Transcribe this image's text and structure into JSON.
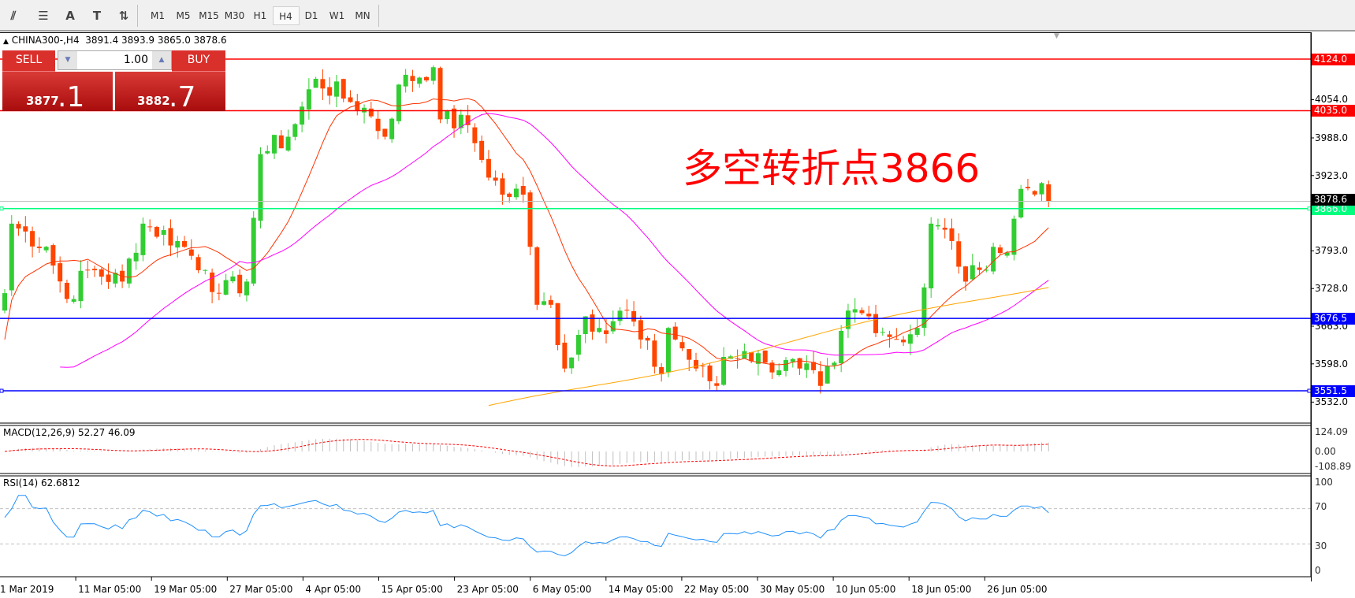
{
  "toolbar": {
    "tools": [
      {
        "name": "fibonacci-expansion-icon",
        "glyph": "⫽"
      },
      {
        "name": "fibonacci-fan-icon",
        "glyph": "☰"
      },
      {
        "name": "text-icon",
        "glyph": "A"
      },
      {
        "name": "text-label-icon",
        "glyph": "T"
      },
      {
        "name": "arrows-icon",
        "glyph": "⇅"
      }
    ],
    "timeframes": [
      "M1",
      "M5",
      "M15",
      "M30",
      "H1",
      "H4",
      "D1",
      "W1",
      "MN"
    ],
    "active_timeframe": "H4"
  },
  "chart": {
    "symbol_line": "CHINA300-,H4",
    "ohlc": "3891.4 3893.9 3865.0 3878.6",
    "annotation": "多空转折点3866",
    "annotation_color": "#ff0000",
    "bull_color": "#32cd32",
    "bear_color": "#ff4500",
    "price_ticks": [
      "4054.0",
      "3988.0",
      "3923.0",
      "3793.0",
      "3728.0",
      "3663.0",
      "3598.0",
      "3532.0"
    ],
    "levels": [
      {
        "value": "4124.0",
        "price": 4124.0,
        "color": "#ff0000"
      },
      {
        "value": "4035.0",
        "price": 4035.0,
        "color": "#ff0000"
      },
      {
        "value": "3866.0",
        "price": 3866.0,
        "color": "#00ff7f"
      },
      {
        "value": "3676.5",
        "price": 3676.5,
        "color": "#0000ff"
      },
      {
        "value": "3551.5",
        "price": 3551.5,
        "color": "#0000ff"
      }
    ],
    "current_price": {
      "value": "3878.6",
      "price": 3878.6
    },
    "price_waypoints": [
      [
        0,
        3720
      ],
      [
        1,
        3840
      ],
      [
        6,
        3800
      ],
      [
        9,
        3710
      ],
      [
        12,
        3760
      ],
      [
        17,
        3740
      ],
      [
        20,
        3840
      ],
      [
        25,
        3810
      ],
      [
        29,
        3760
      ],
      [
        31,
        3720
      ],
      [
        35,
        3740
      ],
      [
        36,
        3850
      ],
      [
        37,
        3960
      ],
      [
        41,
        3990
      ],
      [
        45,
        4090
      ],
      [
        50,
        4050
      ],
      [
        52,
        4040
      ],
      [
        55,
        3990
      ],
      [
        57,
        4080
      ],
      [
        62,
        4110
      ],
      [
        63,
        4020
      ],
      [
        67,
        4010
      ],
      [
        69,
        3950
      ],
      [
        72,
        3890
      ],
      [
        75,
        3890
      ],
      [
        76,
        3800
      ],
      [
        77,
        3700
      ],
      [
        79,
        3700
      ],
      [
        81,
        3590
      ],
      [
        84,
        3680
      ],
      [
        86,
        3660
      ],
      [
        90,
        3690
      ],
      [
        92,
        3640
      ],
      [
        95,
        3580
      ],
      [
        96,
        3660
      ],
      [
        100,
        3590
      ],
      [
        103,
        3560
      ],
      [
        104,
        3610
      ],
      [
        107,
        3620
      ],
      [
        110,
        3600
      ],
      [
        115,
        3590
      ],
      [
        118,
        3560
      ],
      [
        120,
        3600
      ],
      [
        122,
        3690
      ],
      [
        125,
        3680
      ],
      [
        129,
        3640
      ],
      [
        132,
        3660
      ],
      [
        133,
        3730
      ],
      [
        134,
        3840
      ],
      [
        137,
        3810
      ],
      [
        139,
        3740
      ],
      [
        141,
        3760
      ],
      [
        143,
        3800
      ],
      [
        145,
        3790
      ],
      [
        147,
        3900
      ],
      [
        150,
        3910
      ],
      [
        151,
        3878.6
      ]
    ],
    "dates": [
      "1 Mar 2019",
      "11 Mar 05:00",
      "19 Mar 05:00",
      "27 Mar 05:00",
      "4 Apr 05:00",
      "15 Apr 05:00",
      "23 Apr 05:00",
      "6 May 05:00",
      "14 May 05:00",
      "22 May 05:00",
      "30 May 05:00",
      "10 Jun 05:00",
      "18 Jun 05:00",
      "26 Jun 05:00"
    ]
  },
  "trade_panel": {
    "sell_label": "SELL",
    "buy_label": "BUY",
    "lot": "1.00",
    "sell_price_main": "3877",
    "sell_price_big": ".1",
    "buy_price_main": "3882",
    "buy_price_big": ".7"
  },
  "macd": {
    "label": "MACD(12,26,9) 52.27 46.09",
    "ticks": [
      "124.09",
      "0.00",
      "-108.89"
    ]
  },
  "rsi": {
    "label": "RSI(14) 62.6812",
    "ticks": [
      "100",
      "70",
      "30",
      "0"
    ]
  }
}
